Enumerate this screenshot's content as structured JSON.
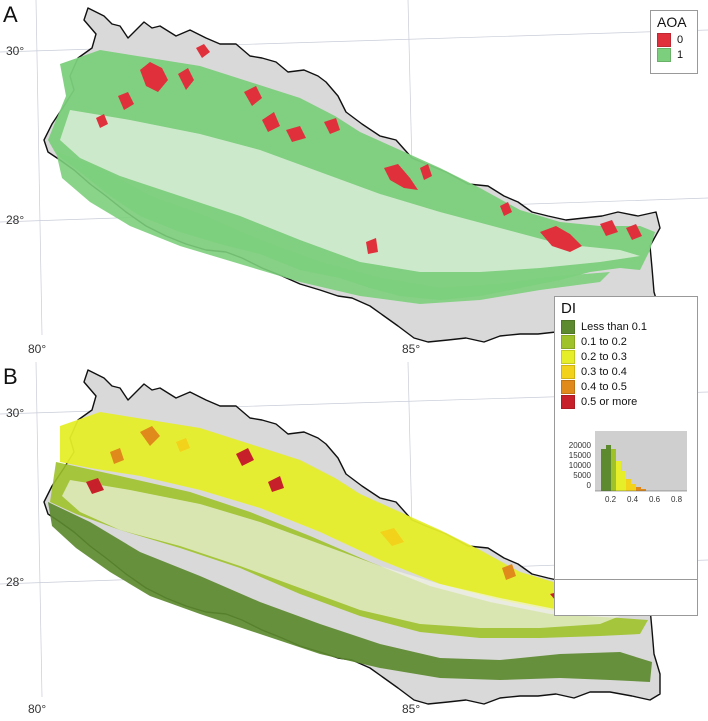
{
  "panel_a": {
    "letter": "A",
    "lat_labels": [
      "30°",
      "28°"
    ],
    "lon_labels": [
      "80°",
      "85°"
    ],
    "legend": {
      "title": "AOA",
      "items": [
        {
          "label": "0",
          "color": "#e0303c"
        },
        {
          "label": "1",
          "color": "#7ccf7c"
        }
      ]
    }
  },
  "panel_b": {
    "letter": "B",
    "lat_labels": [
      "30°",
      "28°"
    ],
    "lon_labels": [
      "80°",
      "85°"
    ],
    "legend": {
      "title": "DI",
      "items": [
        {
          "label": "Less than 0.1",
          "color": "#5d8a2f"
        },
        {
          "label": "0.1 to 0.2",
          "color": "#9fc22a"
        },
        {
          "label": "0.2 to 0.3",
          "color": "#e6ee2a"
        },
        {
          "label": "0.3 to 0.4",
          "color": "#f2d21a"
        },
        {
          "label": "0.4 to 0.5",
          "color": "#df8a1a"
        },
        {
          "label": "0.5 or more",
          "color": "#c8202a"
        }
      ]
    },
    "histogram": {
      "y_ticks": [
        "20000",
        "15000",
        "10000",
        "5000",
        "0"
      ],
      "x_ticks": [
        "0.2",
        "0.4",
        "0.6",
        "0.8"
      ]
    }
  },
  "colors": {
    "land": "#d9d9d9",
    "border": "#111111",
    "grid": "#c9ccd8",
    "aoa_inside": "#7ccf7c",
    "aoa_outside": "#e0303c"
  }
}
